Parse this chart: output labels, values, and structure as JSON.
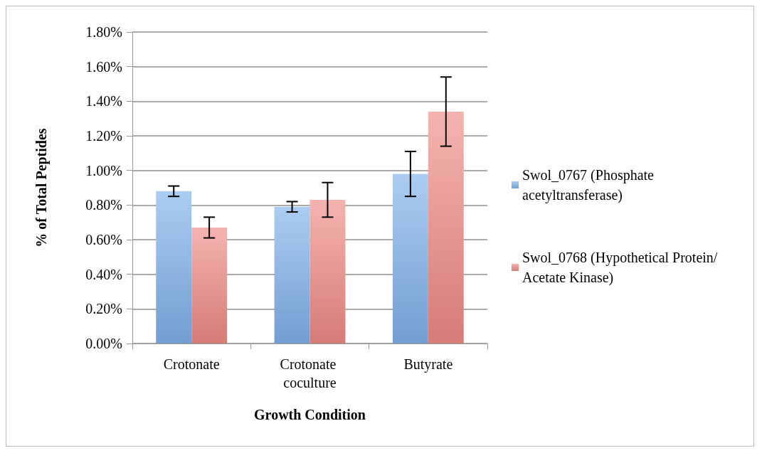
{
  "chart_data": {
    "type": "bar",
    "xlabel": "Growth Condition",
    "ylabel": "% of Total Peptides",
    "categories": [
      "Crotonate",
      "Crotonate coculture",
      "Butyrate"
    ],
    "series": [
      {
        "name": "Swol_0767 (Phosphate acetyltransferase)",
        "color": "#7fb0e9",
        "values": [
          0.88,
          0.79,
          0.98
        ],
        "errors": [
          0.03,
          0.03,
          0.13
        ]
      },
      {
        "name": "Swol_0768 (Hypothetical Protein/Acetate Kinase)",
        "color": "#ee8a84",
        "values": [
          0.67,
          0.83,
          1.34
        ],
        "errors": [
          0.06,
          0.1,
          0.2
        ]
      }
    ],
    "ylim": [
      0,
      1.8
    ],
    "yticks": [
      {
        "value": 0,
        "label": "0.00%"
      },
      {
        "value": 0.2,
        "label": "0.20%"
      },
      {
        "value": 0.4,
        "label": "0.40%"
      },
      {
        "value": 0.6,
        "label": "0.60%"
      },
      {
        "value": 0.8,
        "label": "0.80%"
      },
      {
        "value": 1.0,
        "label": "1.00%"
      },
      {
        "value": 1.2,
        "label": "1.20%"
      },
      {
        "value": 1.4,
        "label": "1.40%"
      },
      {
        "value": 1.6,
        "label": "1.60%"
      },
      {
        "value": 1.8,
        "label": "1.80%"
      }
    ],
    "grid": "y",
    "legend": "right"
  }
}
